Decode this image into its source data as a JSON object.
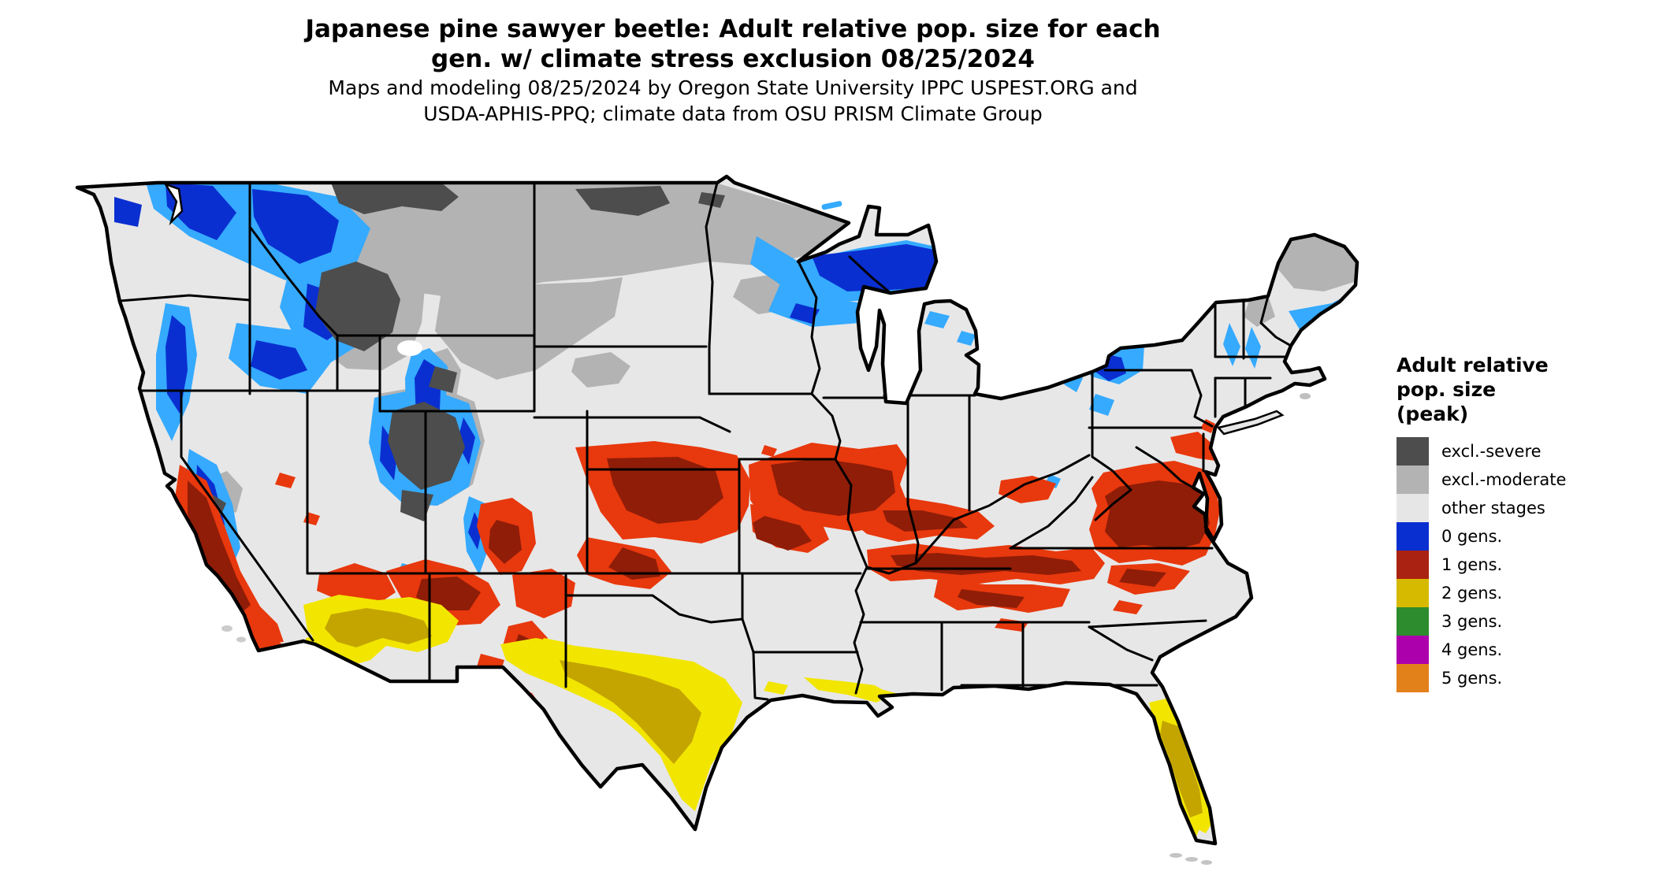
{
  "title": {
    "line1": "Japanese pine sawyer beetle: Adult relative pop. size for each",
    "line2": "gen. w/ climate stress exclusion 08/25/2024"
  },
  "subtitle": {
    "line1": "Maps and modeling 08/25/2024 by Oregon State University IPPC USPEST.ORG and",
    "line2": "USDA-APHIS-PPQ; climate data from OSU PRISM Climate Group"
  },
  "legend": {
    "title_lines": [
      "Adult relative",
      "pop. size",
      "(peak)"
    ],
    "items": [
      {
        "label": "excl.-severe",
        "color": "#4d4d4d"
      },
      {
        "label": "excl.-moderate",
        "color": "#b3b3b3"
      },
      {
        "label": "other stages",
        "color": "#e6e6e6"
      },
      {
        "label": "0 gens.",
        "color": "#0a2fd0"
      },
      {
        "label": "1 gens.",
        "color": "#aa2211"
      },
      {
        "label": "2 gens.",
        "color": "#d6ba00"
      },
      {
        "label": "3 gens.",
        "color": "#2d8c2d"
      },
      {
        "label": "4 gens.",
        "color": "#ad00ad"
      },
      {
        "label": "5 gens.",
        "color": "#e2801a"
      }
    ]
  },
  "map": {
    "region": "Contiguous United States",
    "land_color": "#e7e7e7",
    "border_color": "#000000",
    "shade_colors": {
      "excl_severe": "#4d4d4d",
      "excl_moderate": "#b3b3b3",
      "gens0_core": "#0a2fd0",
      "gens0_fringe": "#35aaff",
      "gens1_bright": "#e8380d",
      "gens1_dark": "#8f1d08",
      "gens2_bright": "#f2e600",
      "gens2_dark": "#c4a500"
    }
  }
}
